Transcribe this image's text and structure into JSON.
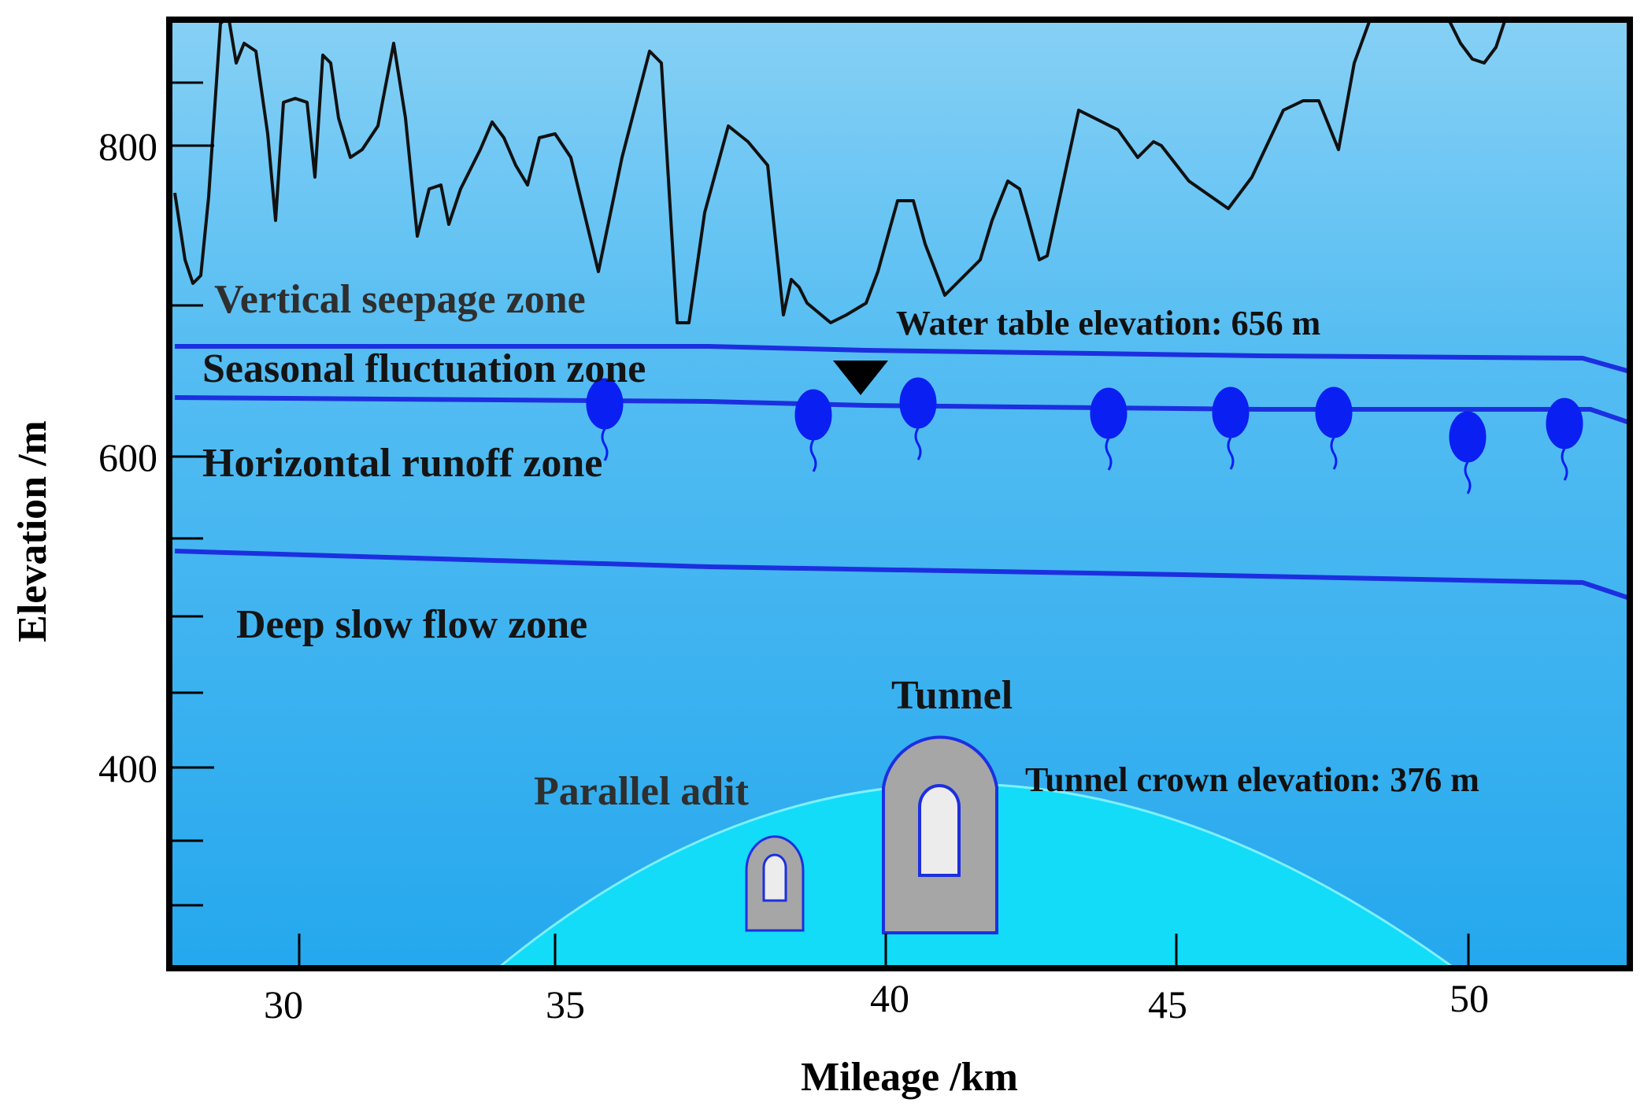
{
  "diagram": {
    "x_axis": {
      "title": "Mileage /km",
      "ticks": [
        {
          "label": "30",
          "value": 30
        },
        {
          "label": "35",
          "value": 35
        },
        {
          "label": "40",
          "value": 40
        },
        {
          "label": "45",
          "value": 45
        },
        {
          "label": "50",
          "value": 50
        }
      ]
    },
    "y_axis": {
      "title": "Elevation /m",
      "ticks": [
        {
          "label": "800",
          "value": 800
        },
        {
          "label": "600",
          "value": 600
        },
        {
          "label": "400",
          "value": 400
        }
      ]
    },
    "zones": {
      "vertical_seepage": "Vertical seepage zone",
      "seasonal_fluctuation": "Seasonal fluctuation zone",
      "horizontal_runoff": "Horizontal runoff zone",
      "deep_slow_flow": "Deep slow flow zone"
    },
    "annotations": {
      "water_table": "Water table elevation: 656 m",
      "tunnel": "Tunnel",
      "tunnel_crown": "Tunnel crown elevation: 376 m",
      "parallel_adit": "Parallel adit"
    },
    "colors": {
      "sky_top": "#86d0f5",
      "ground_bottom": "#25a8ee",
      "boundary_line": "#1c2fe0",
      "influence_zone": "#12dcf8",
      "spring": "#0a1ff2",
      "tunnel_lining": "#a6a6a6",
      "tunnel_inner": "#ececec",
      "terrain_line": "#111111"
    }
  }
}
